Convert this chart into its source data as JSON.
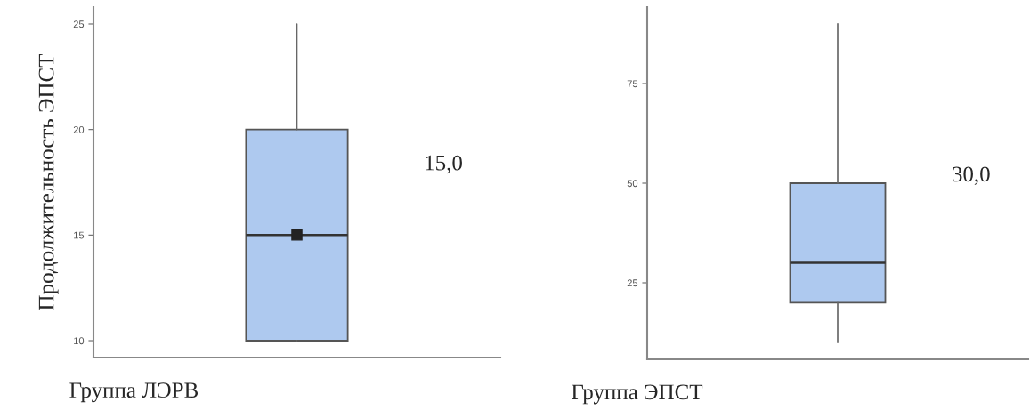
{
  "chart_data": [
    {
      "type": "box",
      "xlabel": "Группа ЛЭРВ",
      "ylabel": "Продолжительность ЭПСТ",
      "categories": [
        null
      ],
      "color": "#aec9ef",
      "marker": "square",
      "boxes": [
        {
          "low": 10,
          "q1": 10,
          "median": 15,
          "q3": 20,
          "high": 25,
          "mean": 15
        }
      ],
      "ylim": [
        9.2,
        25.8
      ],
      "yticks": [
        10,
        15,
        20,
        25
      ],
      "tick_labels": "y",
      "grid": false,
      "annotations": [
        "15,0"
      ]
    },
    {
      "type": "box",
      "xlabel": "Группа ЭПСТ",
      "categories": [
        null
      ],
      "color": "#aec9ef",
      "boxes": [
        {
          "low": 10,
          "q1": 20,
          "median": 30,
          "q3": 50,
          "high": 90
        }
      ],
      "ylim": [
        5.8,
        94.2
      ],
      "yticks": [
        25,
        50,
        75
      ],
      "tick_labels": "y",
      "grid": false,
      "annotations": [
        "30,0"
      ]
    }
  ]
}
